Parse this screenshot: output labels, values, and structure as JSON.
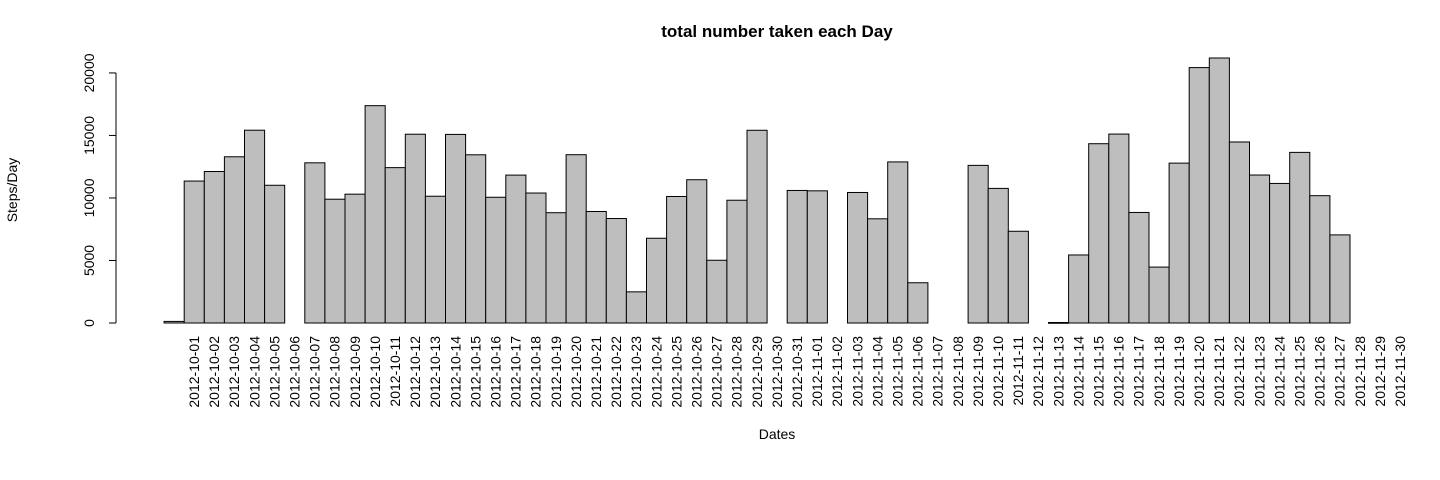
{
  "chart_data": {
    "type": "bar",
    "title": "total number taken each Day",
    "xlabel": "Dates",
    "ylabel": "Steps/Day",
    "ylim": [
      0,
      21194
    ],
    "yticks": [
      0,
      5000,
      10000,
      15000,
      20000
    ],
    "bar_color": "#bebebe",
    "grid": false,
    "categories": [
      "2012-10-01",
      "2012-10-02",
      "2012-10-03",
      "2012-10-04",
      "2012-10-05",
      "2012-10-06",
      "2012-10-07",
      "2012-10-08",
      "2012-10-09",
      "2012-10-10",
      "2012-10-11",
      "2012-10-12",
      "2012-10-13",
      "2012-10-14",
      "2012-10-15",
      "2012-10-16",
      "2012-10-17",
      "2012-10-18",
      "2012-10-19",
      "2012-10-20",
      "2012-10-21",
      "2012-10-22",
      "2012-10-23",
      "2012-10-24",
      "2012-10-25",
      "2012-10-26",
      "2012-10-27",
      "2012-10-28",
      "2012-10-29",
      "2012-10-30",
      "2012-10-31",
      "2012-11-01",
      "2012-11-02",
      "2012-11-03",
      "2012-11-04",
      "2012-11-05",
      "2012-11-06",
      "2012-11-07",
      "2012-11-08",
      "2012-11-09",
      "2012-11-10",
      "2012-11-11",
      "2012-11-12",
      "2012-11-13",
      "2012-11-14",
      "2012-11-15",
      "2012-11-16",
      "2012-11-17",
      "2012-11-18",
      "2012-11-19",
      "2012-11-20",
      "2012-11-21",
      "2012-11-22",
      "2012-11-23",
      "2012-11-24",
      "2012-11-25",
      "2012-11-26",
      "2012-11-27",
      "2012-11-28",
      "2012-11-29",
      "2012-11-30"
    ],
    "values": [
      0,
      126,
      11352,
      12116,
      13294,
      15420,
      11015,
      0,
      12811,
      9900,
      10304,
      17382,
      12426,
      15098,
      10139,
      15084,
      13452,
      10056,
      11829,
      10395,
      8821,
      13460,
      8918,
      8355,
      2492,
      6778,
      10119,
      11458,
      5018,
      9819,
      15414,
      0,
      10600,
      10571,
      0,
      10439,
      8334,
      12883,
      3219,
      0,
      0,
      12608,
      10765,
      7336,
      0,
      41,
      5441,
      14339,
      15110,
      8841,
      4472,
      12787,
      20427,
      21194,
      14478,
      11834,
      11162,
      13646,
      10183,
      7047,
      0
    ]
  }
}
